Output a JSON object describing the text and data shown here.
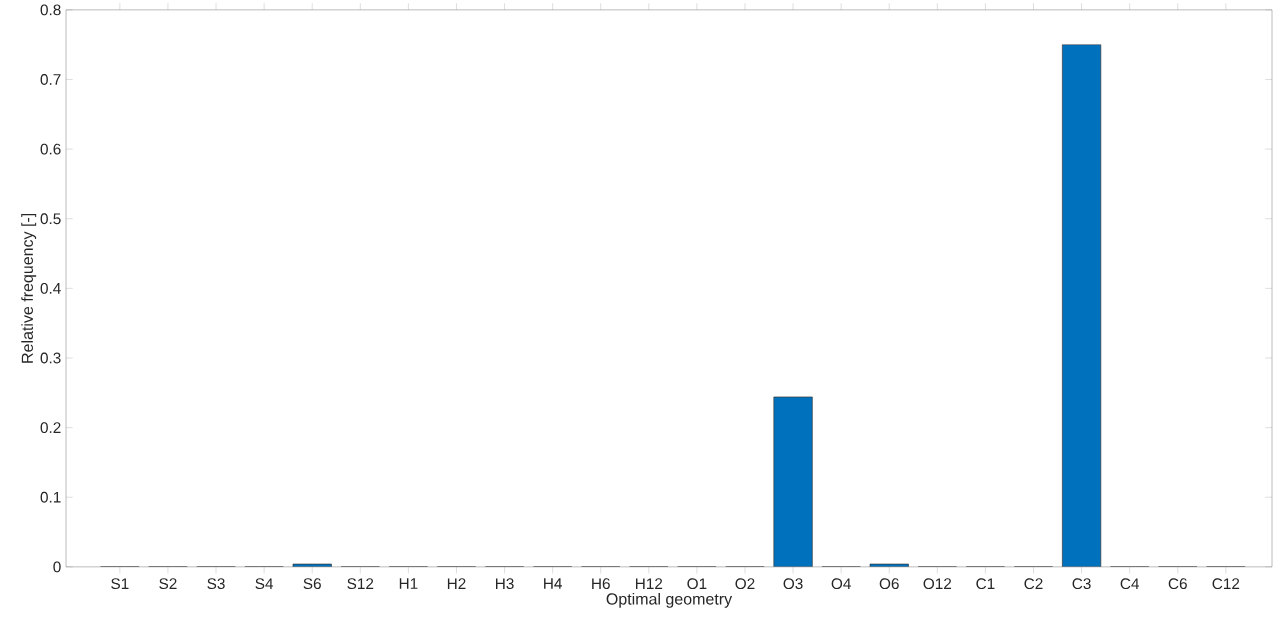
{
  "chart_data": {
    "type": "bar",
    "xlabel": "Optimal geometry",
    "ylabel": "Relative frequency [-]",
    "categories": [
      "S1",
      "S2",
      "S3",
      "S4",
      "S6",
      "S12",
      "H1",
      "H2",
      "H3",
      "H4",
      "H6",
      "H12",
      "O1",
      "O2",
      "O3",
      "O4",
      "O6",
      "O12",
      "C1",
      "C2",
      "C3",
      "C4",
      "C6",
      "C12"
    ],
    "values": [
      0,
      0,
      0,
      0,
      0.004,
      0,
      0,
      0,
      0,
      0,
      0,
      0,
      0,
      0,
      0.244,
      0,
      0.004,
      0,
      0,
      0,
      0.75,
      0,
      0,
      0
    ],
    "color": "#0072bd",
    "ylim": [
      0,
      0.8
    ],
    "yticks": [
      0,
      0.1,
      0.2,
      0.3,
      0.4,
      0.5,
      0.6,
      0.7,
      0.8
    ]
  }
}
